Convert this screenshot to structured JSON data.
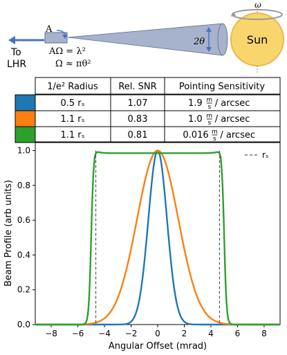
{
  "diagram": {
    "aperture_label": "A",
    "to_label": "To",
    "lhr_label": "LHR",
    "eq1": "AΩ = λ²",
    "eq2": "Ω ≈ πθ²",
    "two_theta": "2θ",
    "sun_label": "Sun",
    "omega": "ω",
    "colors": {
      "cone": "#a7b2cc",
      "arrow": "#4472c4",
      "sun": "#f9d56e",
      "sun_edge": "#e8b84a"
    }
  },
  "table": {
    "headers": [
      "1/e² Radius",
      "Rel. SNR",
      "Pointing Sensitivity"
    ],
    "rows": [
      {
        "color": "#1f77b4",
        "radius": "0.5 rₛ",
        "snr": "1.07",
        "num": "1.9",
        "unit_top": "m",
        "unit_bot": "s",
        "tail": "/ arcsec"
      },
      {
        "color": "#ff7f0e",
        "radius": "1.1 rₛ",
        "snr": "0.83",
        "num": "1.0",
        "unit_top": "m",
        "unit_bot": "s",
        "tail": "/ arcsec"
      },
      {
        "color": "#2ca02c",
        "radius": "1.1 rₛ",
        "snr": "0.81",
        "num": "0.016",
        "unit_top": "m",
        "unit_bot": "s",
        "tail": "/ arcsec"
      }
    ]
  },
  "chart_data": {
    "type": "line",
    "xlabel": "Angular Offset (mrad)",
    "ylabel": "Beam Profile (arb units)",
    "xlim": [
      -9.2,
      9.2
    ],
    "ylim": [
      0.0,
      1.05
    ],
    "xticks": [
      -8,
      -6,
      -4,
      -2,
      0,
      2,
      4,
      6,
      8
    ],
    "yticks": [
      0.0,
      0.2,
      0.4,
      0.6,
      0.8,
      1.0
    ],
    "r_s": 4.65,
    "legend": {
      "label": "rₛ",
      "placement": "top-right"
    },
    "series": [
      {
        "color": "#1f77b4",
        "kind": "gaussian",
        "w": 1.4
      },
      {
        "color": "#ff7f0e",
        "kind": "gaussian",
        "w": 3.1
      },
      {
        "color": "#2ca02c",
        "kind": "flat-top",
        "halfwidth": 5.0
      }
    ]
  }
}
